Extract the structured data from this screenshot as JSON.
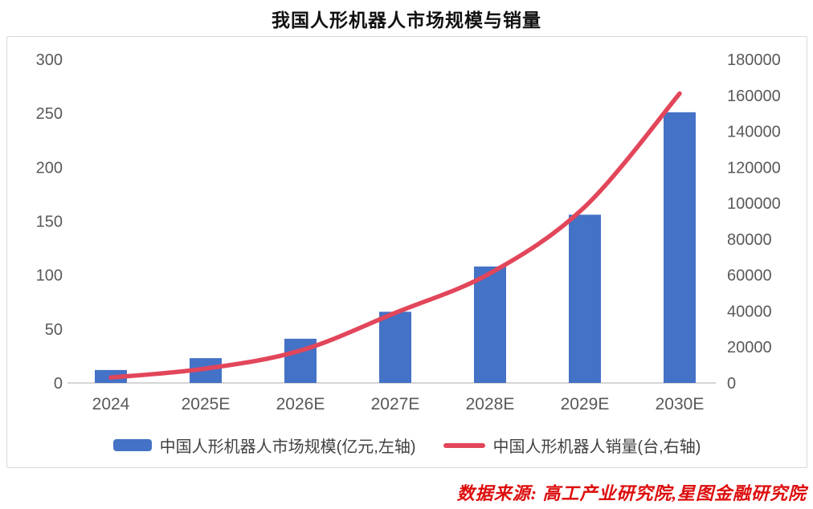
{
  "page": {
    "title": "我国人形机器人市场规模与销量",
    "source": "数据来源: 高工产业研究院,星图金融研究院"
  },
  "chart_data": {
    "type": "combo-bar-line",
    "title": "我国人形机器人市场规模与销量",
    "categories": [
      "2024",
      "2025E",
      "2026E",
      "2027E",
      "2028E",
      "2029E",
      "2030E"
    ],
    "series": [
      {
        "name": "中国人形机器人市场规模(亿元,左轴)",
        "type": "bar",
        "axis": "left",
        "unit": "亿元",
        "color": "#4472c6",
        "values": [
          12,
          23,
          41,
          66,
          108,
          156,
          251
        ]
      },
      {
        "name": "中国人形机器人销量(台,右轴)",
        "type": "line",
        "axis": "right",
        "unit": "台",
        "color": "#e2465a",
        "values": [
          3000,
          8000,
          18000,
          39000,
          61000,
          98000,
          161000
        ]
      }
    ],
    "left_axis": {
      "min": 0,
      "max": 300,
      "ticks": [
        0,
        50,
        100,
        150,
        200,
        250,
        300
      ]
    },
    "right_axis": {
      "min": 0,
      "max": 180000,
      "ticks": [
        0,
        20000,
        40000,
        60000,
        80000,
        100000,
        120000,
        140000,
        160000,
        180000
      ]
    },
    "grid": false,
    "legend_position": "bottom",
    "legend": [
      {
        "label": "中国人形机器人市场规模(亿元,左轴)",
        "swatch": "bar",
        "color": "#4472c6"
      },
      {
        "label": "中国人形机器人销量(台,右轴)",
        "swatch": "line",
        "color": "#e2465a"
      }
    ],
    "colors": {
      "axis_line": "#d6d6d6",
      "tick_text": "#595959"
    }
  }
}
